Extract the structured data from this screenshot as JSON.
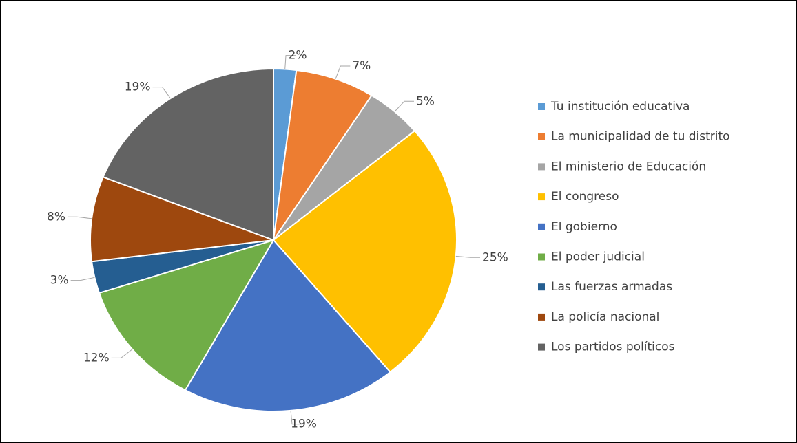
{
  "chart_data": {
    "type": "pie",
    "categories": [
      "Tu institución educativa",
      "La municipalidad de tu distrito",
      "El ministerio de Educación",
      "El congreso",
      "El gobierno",
      "El poder judicial",
      "Las fuerzas armadas",
      "La policía nacional",
      "Los partidos políticos"
    ],
    "values": [
      2,
      7,
      5,
      25,
      19,
      12,
      3,
      8,
      19
    ],
    "value_labels": [
      "2%",
      "7%",
      "5%",
      "25%",
      "19%",
      "12%",
      "3%",
      "8%",
      "19%"
    ],
    "colors": [
      "#5b9bd5",
      "#ed7d31",
      "#a5a5a5",
      "#ffc000",
      "#4472c4",
      "#70ad47",
      "#255e91",
      "#9e480e",
      "#636363"
    ],
    "legend": "right"
  }
}
